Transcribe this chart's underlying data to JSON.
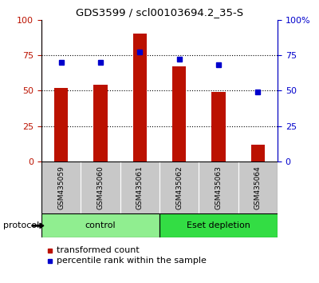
{
  "title": "GDS3599 / scl00103694.2_35-S",
  "samples": [
    "GSM435059",
    "GSM435060",
    "GSM435061",
    "GSM435062",
    "GSM435063",
    "GSM435064"
  ],
  "red_values": [
    52,
    54,
    90,
    67,
    49,
    12
  ],
  "blue_values": [
    70,
    70,
    77,
    72,
    68,
    49
  ],
  "groups": [
    {
      "label": "control",
      "indices": [
        0,
        1,
        2
      ],
      "color": "#90EE90"
    },
    {
      "label": "Eset depletion",
      "indices": [
        3,
        4,
        5
      ],
      "color": "#33DD44"
    }
  ],
  "protocol_label": "protocol",
  "red_color": "#BB1100",
  "blue_color": "#0000CC",
  "bar_width": 0.35,
  "ylim_left": [
    0,
    100
  ],
  "ylim_right": [
    0,
    100
  ],
  "yticks": [
    0,
    25,
    50,
    75,
    100
  ],
  "legend_red": "transformed count",
  "legend_blue": "percentile rank within the sample",
  "tick_area_color": "#C8C8C8",
  "title_fontsize": 9.5,
  "axis_fontsize": 8,
  "sample_fontsize": 6.5,
  "group_fontsize": 8,
  "legend_fontsize": 8,
  "protocol_fontsize": 8
}
